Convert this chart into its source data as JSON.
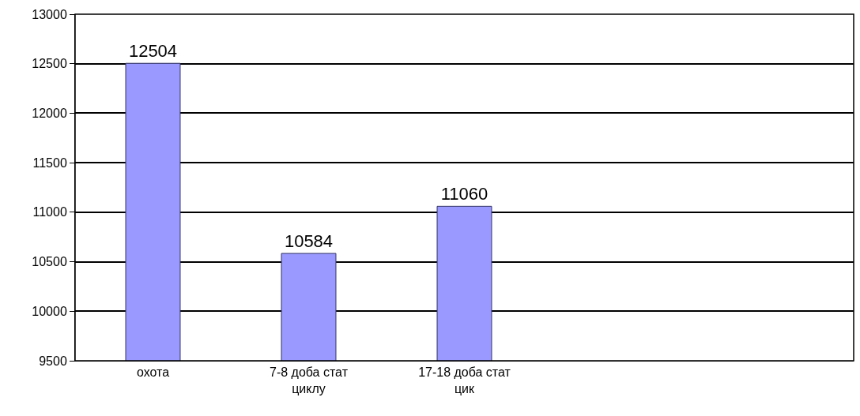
{
  "chart_data": {
    "type": "bar",
    "categories": [
      "охота",
      "7-8 доба стат циклу",
      "17-18 доба стат цик",
      null,
      null
    ],
    "values": [
      12504,
      10584,
      11060,
      null,
      null
    ],
    "color": "#9999ff",
    "ylim": [
      9500,
      13000
    ],
    "yticks": [
      9500,
      10000,
      10500,
      11000,
      11500,
      12000,
      12500,
      13000
    ],
    "grid": "y",
    "data_labels": true
  }
}
